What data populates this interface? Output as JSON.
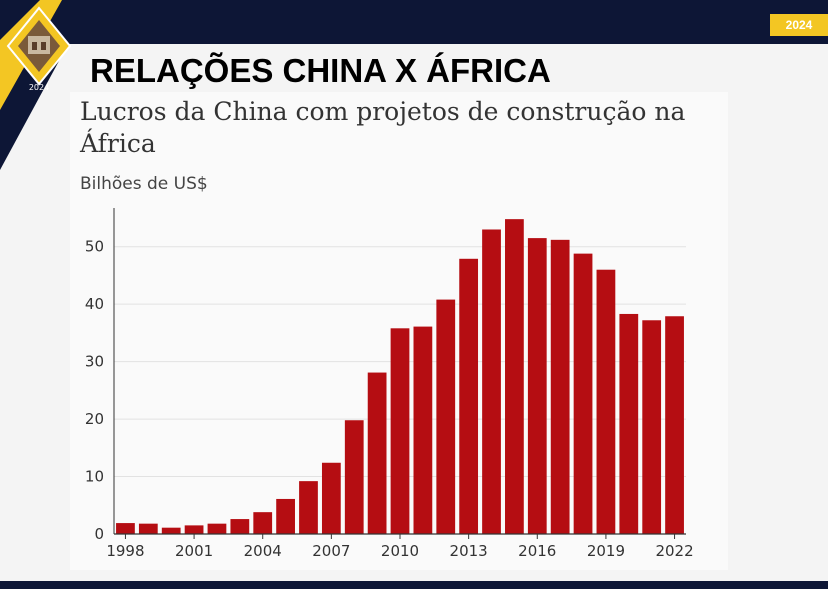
{
  "header": {
    "year_badge": "2024",
    "logo_year": "2024",
    "slide_title": "RELAÇÕES CHINA X ÁFRICA"
  },
  "colors": {
    "bar": "#b50d12",
    "background_dark": "#0d1636",
    "accent_yellow": "#f3c623"
  },
  "chart_data": {
    "type": "bar",
    "title": "Lucros da China com projetos de construção na África",
    "subtitle": "Bilhões de US$",
    "xlabel": "",
    "ylabel": "",
    "ylim": [
      0,
      55
    ],
    "yticks": [
      0,
      10,
      20,
      30,
      40,
      50
    ],
    "grid": true,
    "categories": [
      1998,
      1999,
      2000,
      2001,
      2002,
      2003,
      2004,
      2005,
      2006,
      2007,
      2008,
      2009,
      2010,
      2011,
      2012,
      2013,
      2014,
      2015,
      2016,
      2017,
      2018,
      2019,
      2020,
      2021,
      2022
    ],
    "xtick_labels": [
      "1998",
      "2001",
      "2004",
      "2007",
      "2010",
      "2013",
      "2016",
      "2019",
      "2022"
    ],
    "values": [
      1.9,
      1.8,
      1.1,
      1.5,
      1.8,
      2.6,
      3.8,
      6.1,
      9.2,
      12.4,
      19.8,
      28.1,
      35.8,
      36.1,
      40.8,
      47.9,
      53.0,
      54.8,
      51.5,
      51.2,
      48.8,
      46.0,
      38.3,
      37.2,
      37.9
    ]
  }
}
